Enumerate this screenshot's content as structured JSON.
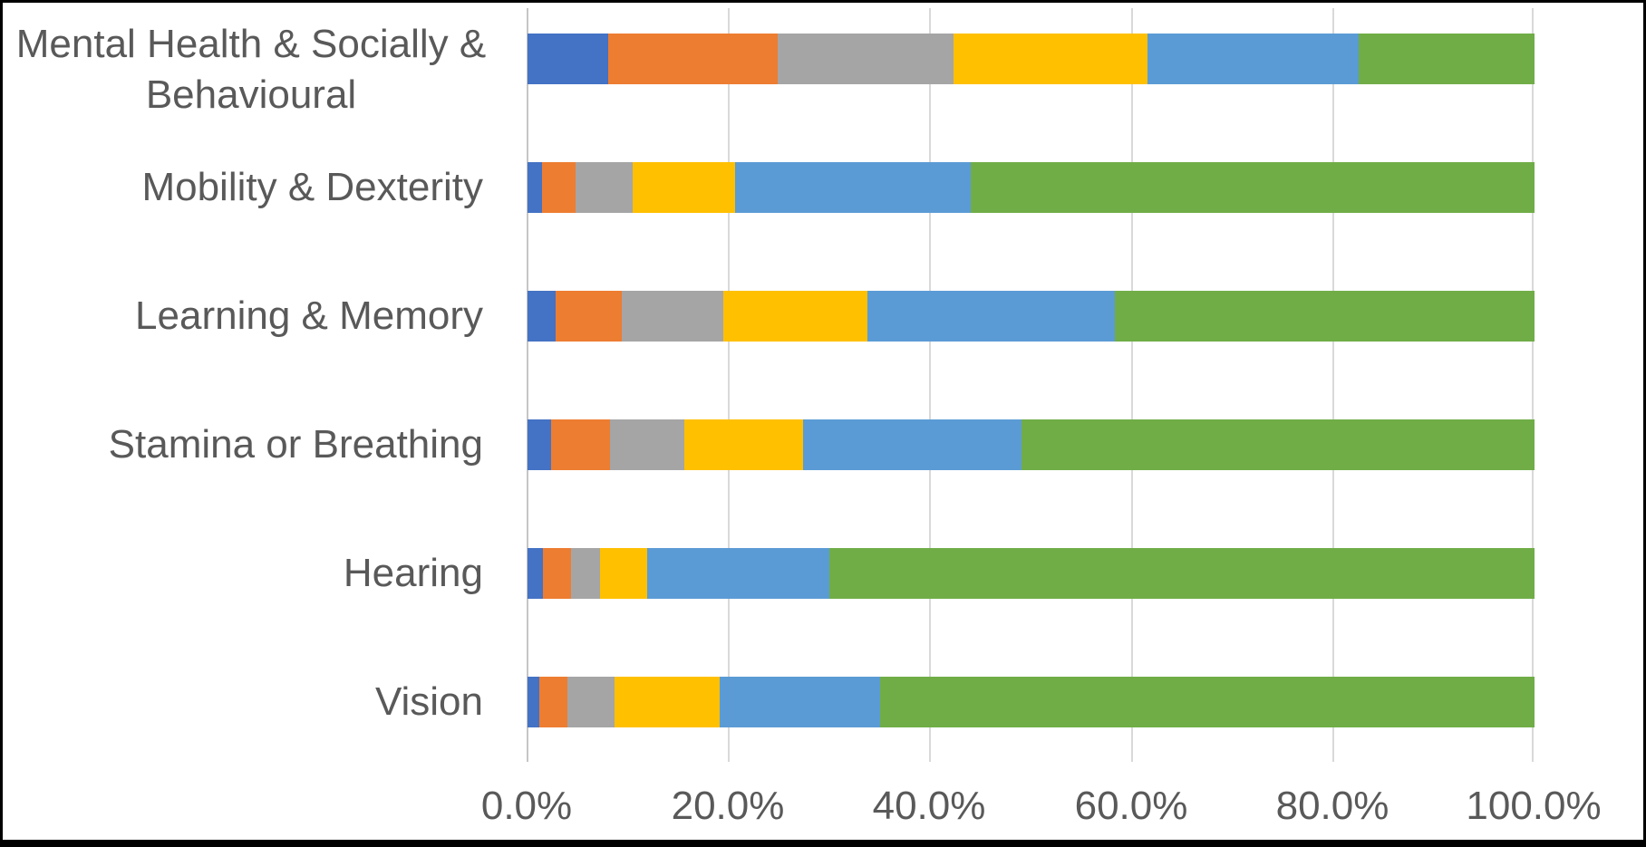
{
  "chart_data": {
    "type": "bar",
    "orientation": "horizontal-stacked",
    "title": "",
    "legend": "none",
    "grid": true,
    "categories": [
      "Mental Health & Socially & Behavioural",
      "Mobility & Dexterity",
      "Learning & Memory",
      "Stamina or Breathing",
      "Hearing",
      "Vision"
    ],
    "series": [
      {
        "name": "segment-1-blue",
        "color": "#4472C4",
        "values": [
          8.0,
          1.4,
          2.8,
          2.3,
          1.5,
          1.2
        ]
      },
      {
        "name": "segment-2-orange",
        "color": "#ED7D31",
        "values": [
          16.8,
          3.4,
          6.6,
          5.9,
          2.8,
          2.8
        ]
      },
      {
        "name": "segment-3-gray",
        "color": "#A5A5A5",
        "values": [
          17.5,
          5.6,
          10.0,
          7.4,
          2.9,
          4.6
        ]
      },
      {
        "name": "segment-4-yellow",
        "color": "#FFC000",
        "values": [
          19.3,
          10.2,
          14.4,
          11.8,
          4.7,
          10.5
        ]
      },
      {
        "name": "segment-5-light-blue",
        "color": "#5B9BD5",
        "values": [
          20.9,
          23.4,
          24.5,
          21.7,
          18.1,
          15.9
        ]
      },
      {
        "name": "segment-6-green",
        "color": "#70AD47",
        "values": [
          17.5,
          56.0,
          41.7,
          50.9,
          70.0,
          65.0
        ]
      }
    ],
    "x_axis": {
      "tick_labels": [
        "0.0%",
        "20.0%",
        "40.0%",
        "60.0%",
        "80.0%",
        "100.0%"
      ],
      "range_percent": [
        0,
        100
      ],
      "tick_step_percent": 20
    },
    "colors": {
      "text": "#595959",
      "gridline": "#D9D9D9",
      "background": "#FFFFFF",
      "frame_border": "#000000"
    }
  }
}
